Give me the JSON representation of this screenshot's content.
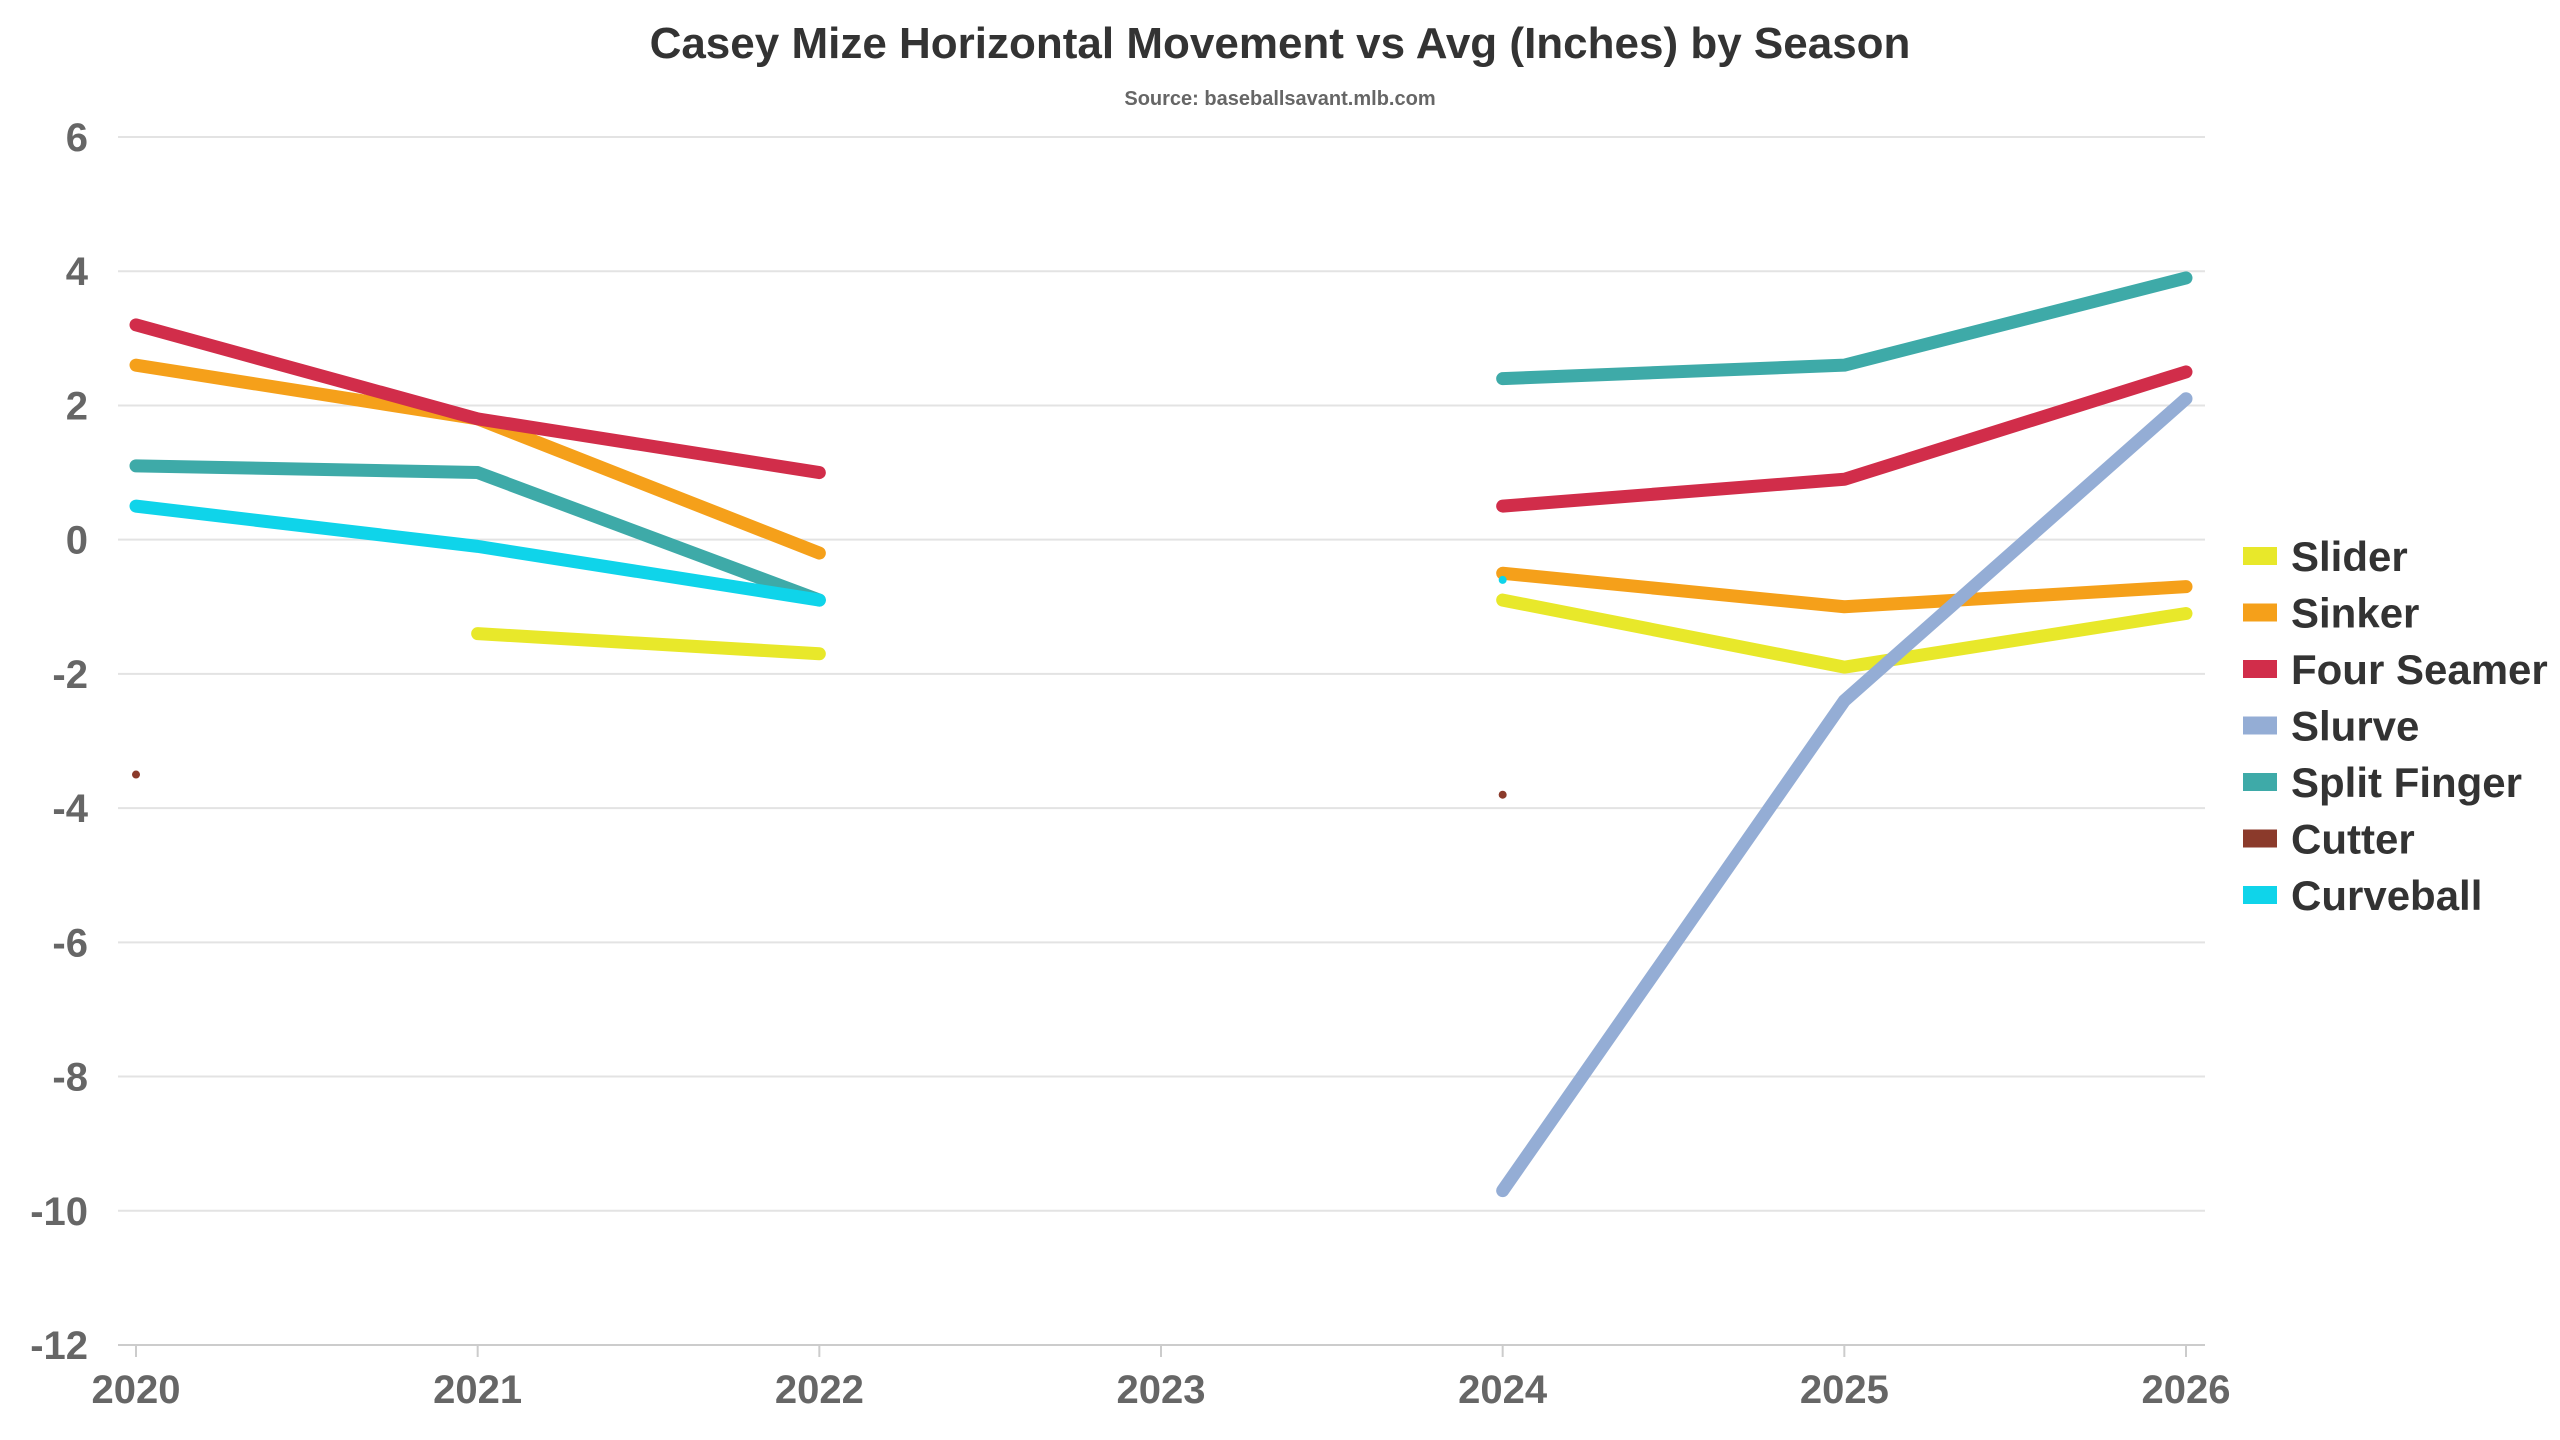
{
  "chart_data": {
    "type": "line",
    "title": "Casey Mize Horizontal Movement vs Avg (Inches) by Season",
    "subtitle": "Source: baseballsavant.mlb.com",
    "xlabel": "",
    "ylabel": "",
    "categories": [
      "2020",
      "2021",
      "2022",
      "2023",
      "2024",
      "2025",
      "2026"
    ],
    "ylim": [
      -12,
      6
    ],
    "yticks": [
      6,
      4,
      2,
      0,
      -2,
      -4,
      -6,
      -8,
      -10,
      -12
    ],
    "ytick_labels": [
      "6",
      "4",
      "2",
      "0",
      "-2",
      "-4",
      "-6",
      "-8",
      "-10",
      "-12"
    ],
    "grid": true,
    "legend_position": "right",
    "series": [
      {
        "name": "Slider",
        "color": "#e8e82a",
        "values": [
          null,
          -1.4,
          -1.7,
          null,
          -0.9,
          -1.9,
          -1.1
        ]
      },
      {
        "name": "Sinker",
        "color": "#f5a01a",
        "values": [
          2.6,
          1.8,
          -0.2,
          null,
          -0.5,
          -1.0,
          -0.7
        ]
      },
      {
        "name": "Four Seamer",
        "color": "#d12d4a",
        "values": [
          3.2,
          1.8,
          1.0,
          null,
          0.5,
          0.9,
          2.5
        ]
      },
      {
        "name": "Slurve",
        "color": "#94add5",
        "values": [
          null,
          null,
          null,
          null,
          -9.7,
          -2.4,
          2.1
        ]
      },
      {
        "name": "Split Finger",
        "color": "#3eaaa8",
        "values": [
          1.1,
          1.0,
          -0.9,
          null,
          2.4,
          2.6,
          3.9
        ]
      },
      {
        "name": "Cutter",
        "color": "#8b3a2b",
        "values": [
          -3.5,
          null,
          null,
          null,
          -3.8,
          null,
          null
        ]
      },
      {
        "name": "Curveball",
        "color": "#0fd4ea",
        "values": [
          0.5,
          -0.1,
          -0.9,
          null,
          -0.6,
          null,
          null
        ]
      }
    ]
  }
}
